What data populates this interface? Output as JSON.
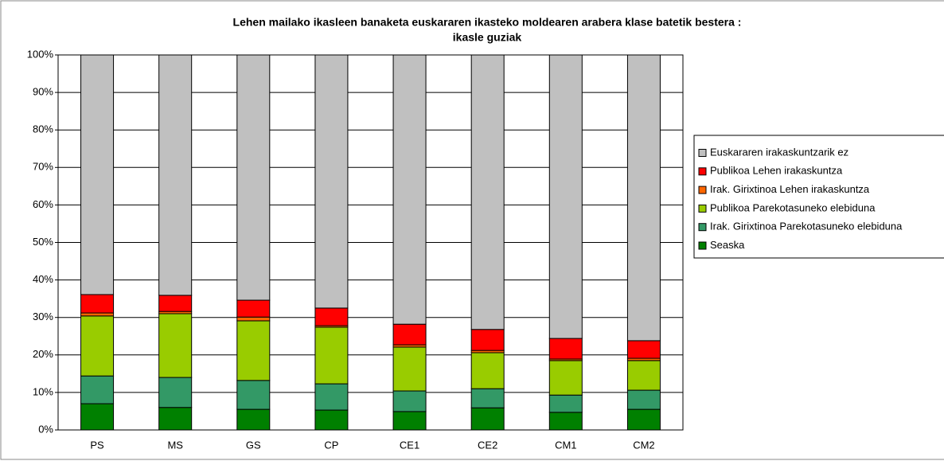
{
  "chart_data": {
    "type": "stacked_bar",
    "title": [
      "Lehen mailako ikasleen banaketa euskararen ikasteko moldearen arabera klase batetik bestera :",
      "ikasle guziak"
    ],
    "categories": [
      "PS",
      "MS",
      "GS",
      "CP",
      "CE1",
      "CE2",
      "CM1",
      "CM2"
    ],
    "series": [
      {
        "name": "Seaska",
        "color": "#008000",
        "values": [
          7,
          6,
          5.5,
          5.3,
          4.9,
          5.9,
          4.7,
          5.5
        ]
      },
      {
        "name": "Irak. Girixtinoa Parekotasuneko elebiduna",
        "color": "#339966",
        "values": [
          7.4,
          8,
          7.7,
          7,
          5.5,
          5.1,
          4.6,
          5.1
        ]
      },
      {
        "name": "Publikoa Parekotasuneko elebiduna",
        "color": "#99cc00",
        "values": [
          16,
          17,
          15.9,
          15.1,
          11.7,
          9.6,
          9.2,
          7.9
        ]
      },
      {
        "name": "Irak. Girixtinoa Lehen irakaskuntza",
        "color": "#ff6600",
        "values": [
          0.8,
          0.6,
          1,
          0.4,
          0.6,
          0.6,
          0.4,
          0.6
        ]
      },
      {
        "name": "Publikoa Lehen irakaskuntza",
        "color": "#ff0000",
        "values": [
          4.9,
          4.3,
          4.5,
          4.7,
          5.5,
          5.6,
          5.5,
          4.7
        ]
      },
      {
        "name": "Euskararen irakaskuntzarik ez",
        "color": "#c0c0c0",
        "values": [
          63.9,
          64.1,
          65.4,
          67.5,
          71.8,
          73.2,
          75.6,
          76.2
        ]
      }
    ],
    "ylim": [
      0,
      100
    ],
    "yticks": [
      {
        "value": 0,
        "label": "0%"
      },
      {
        "value": 10,
        "label": "10%"
      },
      {
        "value": 20,
        "label": "20%"
      },
      {
        "value": 30,
        "label": "30%"
      },
      {
        "value": 40,
        "label": "40%"
      },
      {
        "value": 50,
        "label": "50%"
      },
      {
        "value": 60,
        "label": "60%"
      },
      {
        "value": 70,
        "label": "70%"
      },
      {
        "value": 80,
        "label": "80%"
      },
      {
        "value": 90,
        "label": "90%"
      },
      {
        "value": 100,
        "label": "100%"
      }
    ],
    "grid": true,
    "legend": "right"
  }
}
